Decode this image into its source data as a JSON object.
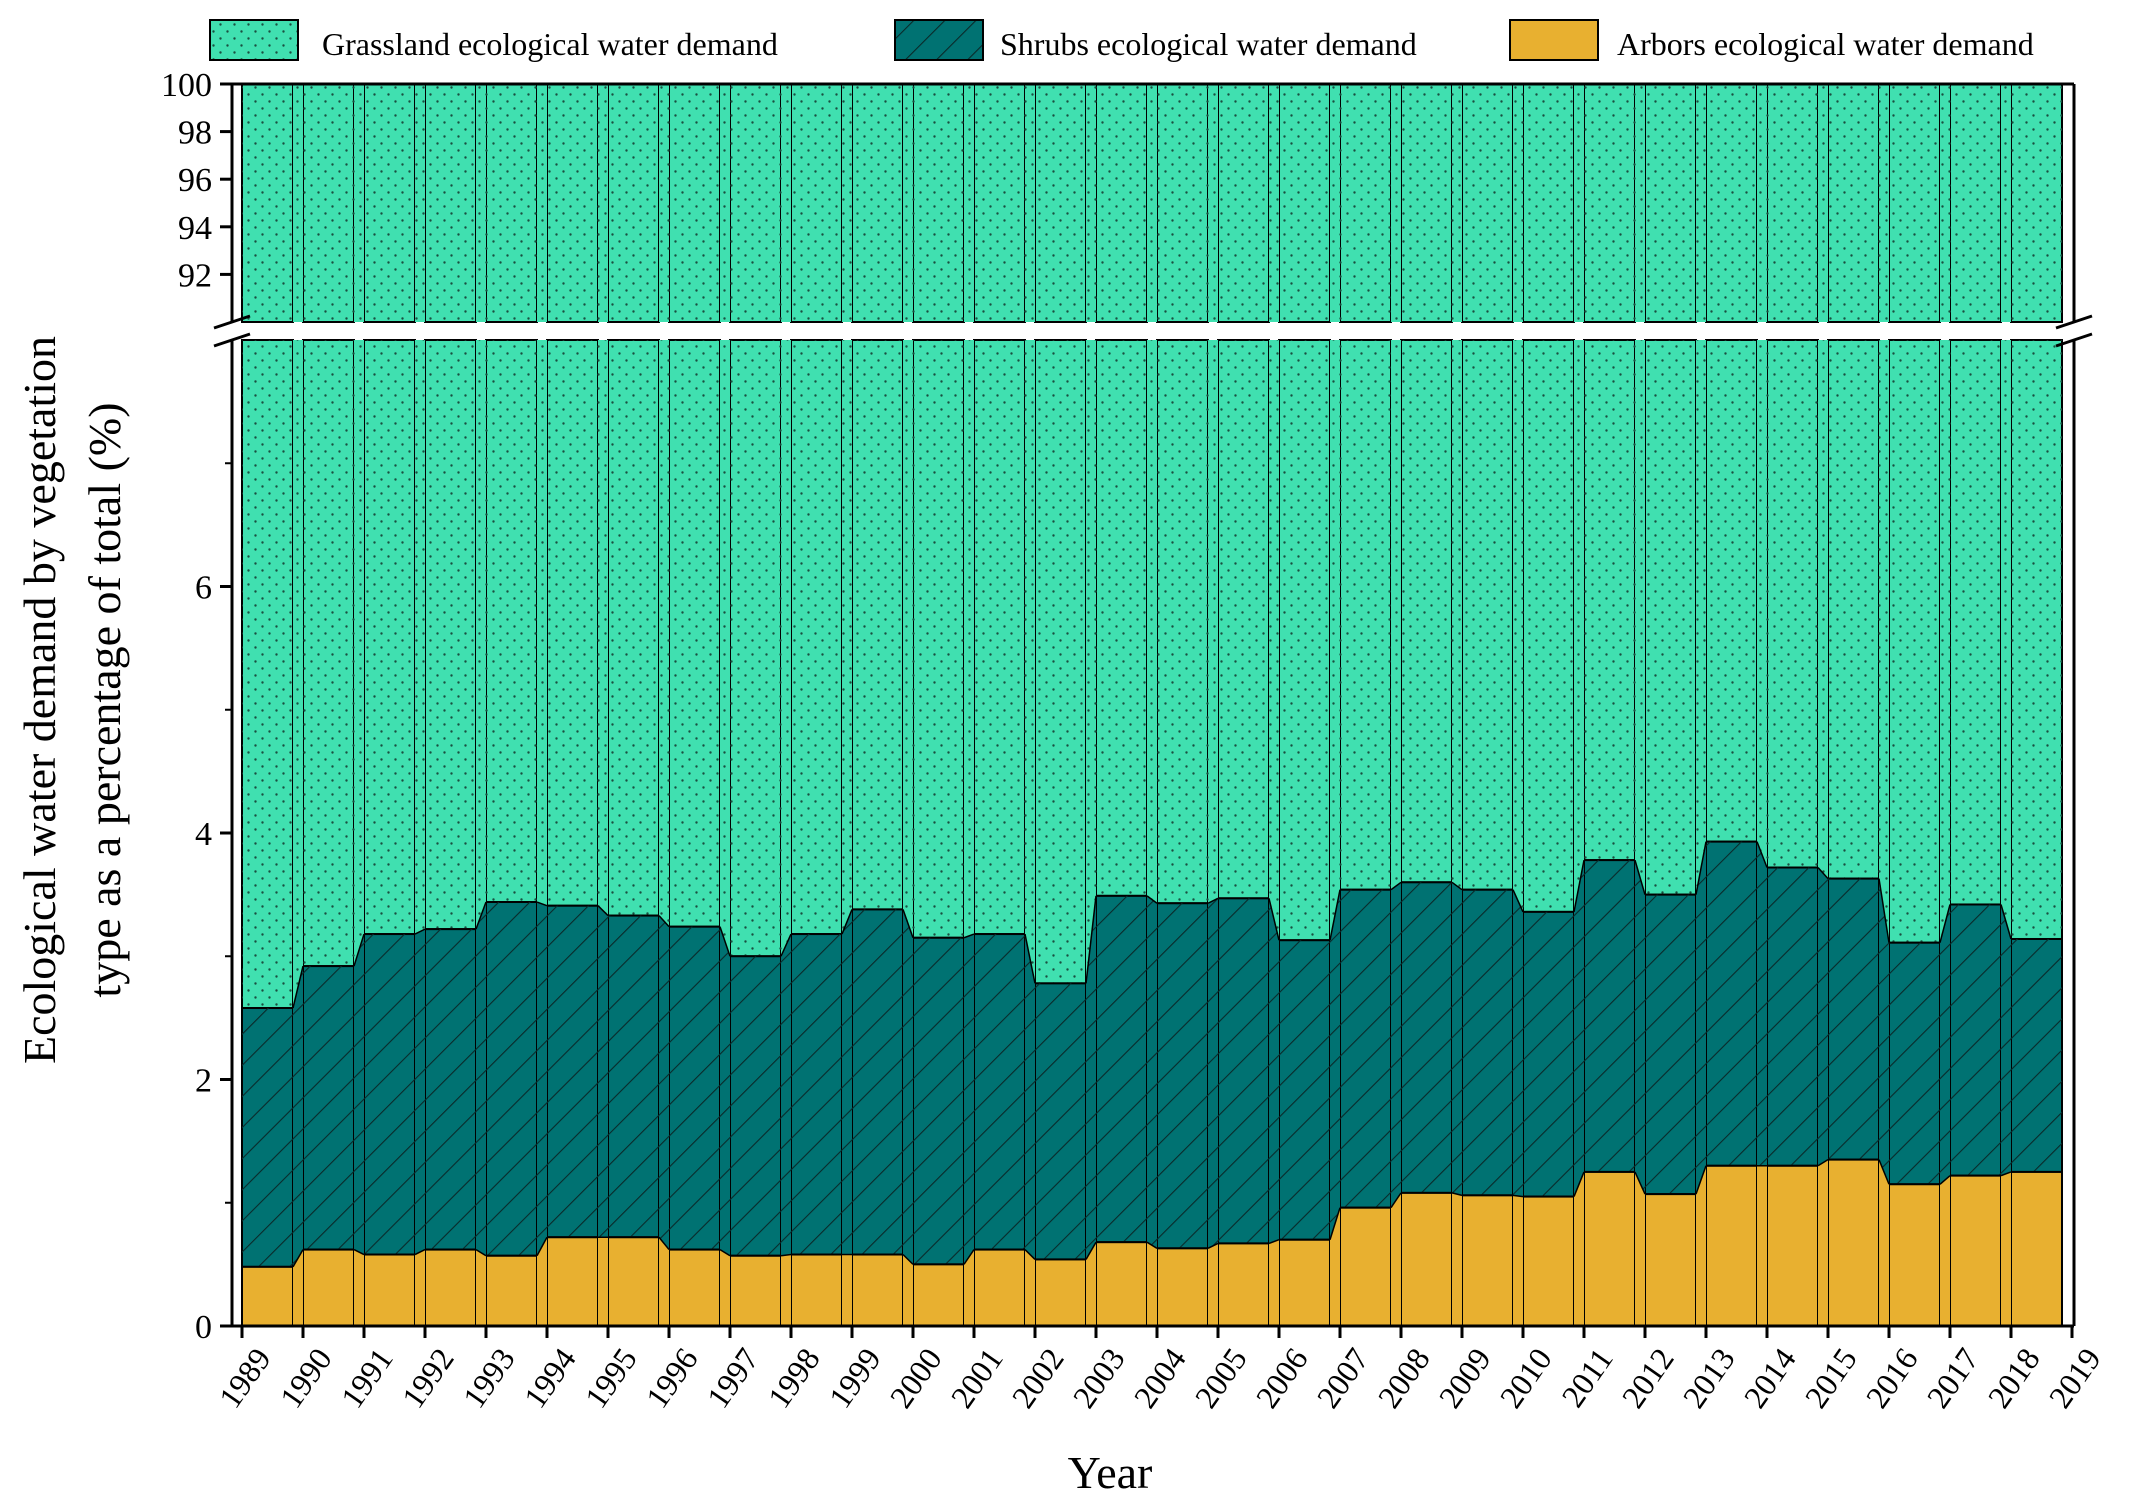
{
  "chart_data": {
    "type": "bar",
    "stacked": true,
    "broken_axis": true,
    "xlabel": "Year",
    "ylabel_lines": [
      "Ecological water demand by vegetation",
      "type as a percentage of total (%)"
    ],
    "categories": [
      "1989",
      "1990",
      "1991",
      "1992",
      "1993",
      "1994",
      "1995",
      "1996",
      "1997",
      "1998",
      "1999",
      "2000",
      "2001",
      "2002",
      "2003",
      "2004",
      "2005",
      "2006",
      "2007",
      "2008",
      "2009",
      "2010",
      "2011",
      "2012",
      "2013",
      "2014",
      "2015",
      "2016",
      "2017",
      "2018"
    ],
    "extra_tick_labels": [
      "2019"
    ],
    "lower_axis": {
      "ylim": [
        0,
        8
      ],
      "ticks": [
        "0",
        "2",
        "4",
        "6"
      ],
      "tick_values": [
        0,
        2,
        4,
        6
      ]
    },
    "upper_axis": {
      "ylim": [
        90,
        100
      ],
      "ticks": [
        "92",
        "94",
        "96",
        "98",
        "100"
      ],
      "tick_values": [
        92,
        94,
        96,
        98,
        100
      ]
    },
    "series": [
      {
        "name": "Arbors ecological water demand",
        "color": "#e8b030",
        "values": [
          0.48,
          0.62,
          0.58,
          0.62,
          0.57,
          0.72,
          0.72,
          0.62,
          0.57,
          0.58,
          0.58,
          0.5,
          0.62,
          0.54,
          0.68,
          0.63,
          0.67,
          0.7,
          0.96,
          1.08,
          1.06,
          1.05,
          1.25,
          1.07,
          1.3,
          1.3,
          1.35,
          1.15,
          1.22,
          1.25
        ]
      },
      {
        "name": "Shrubs ecological water demand",
        "color": "#007272",
        "values": [
          2.1,
          2.3,
          2.6,
          2.6,
          2.87,
          2.69,
          2.61,
          2.62,
          2.43,
          2.6,
          2.8,
          2.65,
          2.56,
          2.24,
          2.81,
          2.8,
          2.8,
          2.43,
          2.58,
          2.52,
          2.48,
          2.31,
          2.53,
          2.43,
          2.63,
          2.42,
          2.28,
          1.96,
          2.2,
          1.89
        ]
      },
      {
        "name": "Grassland ecological water demand",
        "color": "#40e0b0",
        "values": [
          97.42,
          97.08,
          96.82,
          96.78,
          96.56,
          96.59,
          96.67,
          96.76,
          97.0,
          96.82,
          96.62,
          96.85,
          96.82,
          97.22,
          96.51,
          96.57,
          96.53,
          96.87,
          96.46,
          96.4,
          96.46,
          96.64,
          96.22,
          96.5,
          96.07,
          96.28,
          96.37,
          96.89,
          96.58,
          96.86
        ]
      }
    ],
    "legend": {
      "placement": "top",
      "order": [
        "Grassland ecological water demand",
        "Shrubs ecological water demand",
        "Arbors ecological water demand"
      ]
    }
  }
}
